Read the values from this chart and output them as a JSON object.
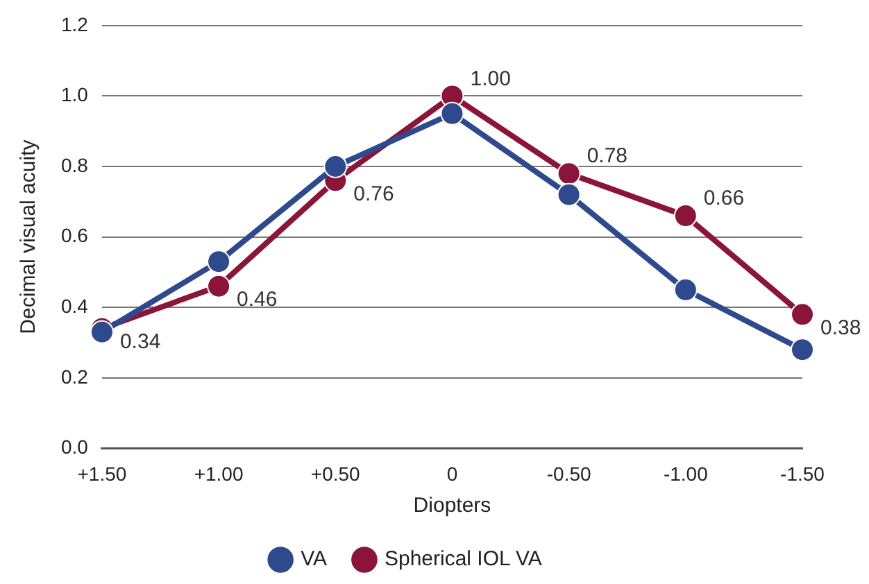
{
  "chart_data": {
    "type": "line",
    "xlabel": "Diopters",
    "ylabel": "Decimal visual acuity",
    "categories": [
      "+1.50",
      "+1.00",
      "+0.50",
      "0",
      "-0.50",
      "-1.00",
      "-1.50"
    ],
    "series": [
      {
        "name": "VA",
        "color": "#2e4a8c",
        "values": [
          0.33,
          0.53,
          0.8,
          0.95,
          0.72,
          0.45,
          0.28
        ]
      },
      {
        "name": "Spherical IOL VA",
        "color": "#8a1538",
        "values": [
          0.34,
          0.46,
          0.76,
          1.0,
          0.78,
          0.66,
          0.38
        ],
        "value_labels": [
          "0.34",
          "0.46",
          "0.76",
          "1.00",
          "0.78",
          "0.66",
          "0.38"
        ]
      }
    ],
    "ylim": [
      0,
      1.2
    ],
    "yticks": [
      {
        "value": 0,
        "label": "0.0"
      },
      {
        "value": 0.2,
        "label": "0.2"
      },
      {
        "value": 0.4,
        "label": "0.4"
      },
      {
        "value": 0.6,
        "label": "0.6"
      },
      {
        "value": 0.8,
        "label": "0.8"
      },
      {
        "value": 1.0,
        "label": "1.0"
      },
      {
        "value": 1.2,
        "label": "1.2"
      }
    ],
    "grid": "y",
    "legend": "bottom",
    "marker": "circle",
    "line_style": "solid"
  }
}
